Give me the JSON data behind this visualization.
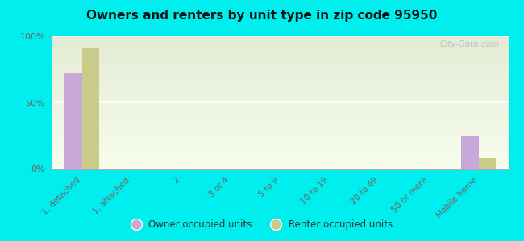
{
  "title": "Owners and renters by unit type in zip code 95950",
  "categories": [
    "1, detached",
    "1, attached",
    "2",
    "3 or 4",
    "5 to 9",
    "10 to 19",
    "20 to 49",
    "50 or more",
    "Mobile home"
  ],
  "owner_values": [
    72,
    0,
    0,
    0,
    0,
    0,
    0,
    0,
    25
  ],
  "renter_values": [
    91,
    0,
    0,
    0,
    0,
    0,
    0,
    0,
    8
  ],
  "owner_color": "#c8a8d8",
  "renter_color": "#c8cc88",
  "ylim": [
    0,
    100
  ],
  "yticks": [
    0,
    50,
    100
  ],
  "ytick_labels": [
    "0%",
    "50%",
    "100%"
  ],
  "outer_background": "#00eeee",
  "bar_width": 0.35,
  "legend_owner": "Owner occupied units",
  "legend_renter": "Renter occupied units",
  "watermark": "City-Data.com"
}
